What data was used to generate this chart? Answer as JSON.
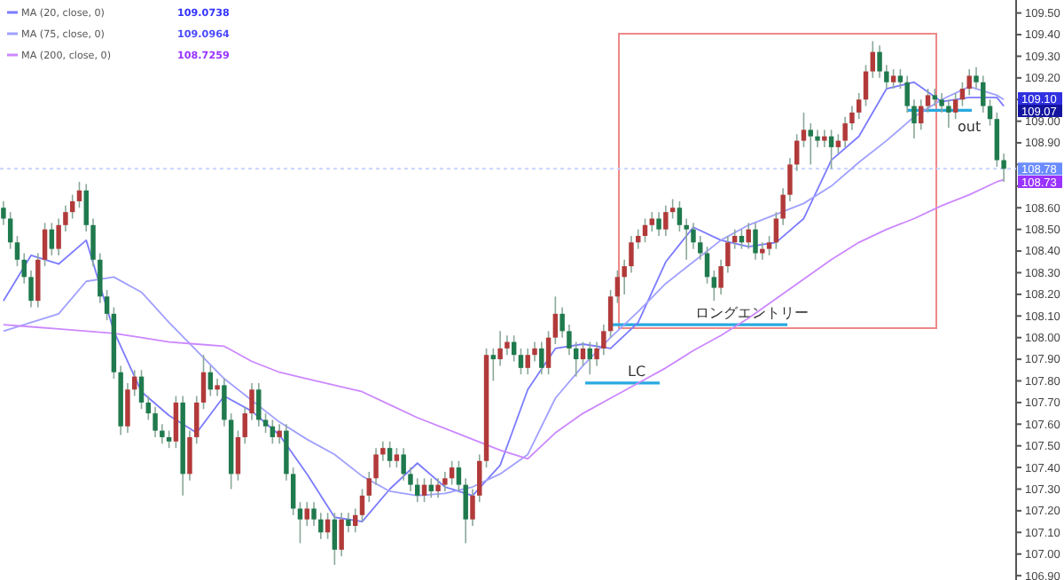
{
  "chart_data": {
    "type": "candlestick",
    "legend": "top left",
    "categories": [
      null,
      null,
      null,
      null,
      null,
      null,
      null,
      null,
      null,
      null,
      null,
      null,
      null,
      null,
      null,
      null,
      null,
      null,
      null,
      null,
      null,
      null,
      null,
      null,
      null,
      null,
      null,
      null,
      null,
      null,
      null,
      null,
      null,
      null,
      null,
      null,
      null,
      null,
      null,
      null,
      null,
      null,
      null,
      null,
      null,
      null,
      null,
      null,
      null,
      null,
      null,
      null,
      null,
      null,
      null,
      null,
      null,
      null,
      null,
      null,
      null,
      null,
      null,
      null,
      null,
      null,
      null,
      null,
      null,
      null,
      null,
      null,
      null,
      null,
      null,
      null,
      null,
      null,
      null,
      null,
      null,
      null,
      null,
      null,
      null,
      null,
      null,
      null,
      null,
      null,
      null,
      null,
      null,
      null,
      null,
      null,
      null,
      null,
      null,
      null,
      null,
      null,
      null,
      null,
      null,
      null,
      null,
      null,
      null,
      null,
      null,
      null,
      null,
      null,
      null,
      null,
      null,
      null,
      null,
      null,
      null,
      null,
      null,
      null,
      null,
      null,
      null,
      null,
      null,
      null,
      null,
      null,
      null,
      null,
      null,
      null,
      null,
      null,
      null,
      null,
      null,
      null,
      null,
      null,
      null,
      null
    ],
    "ohlc": [
      [
        108.6,
        108.63,
        108.52,
        108.55
      ],
      [
        108.55,
        108.58,
        108.41,
        108.44
      ],
      [
        108.44,
        108.47,
        108.33,
        108.36
      ],
      [
        108.36,
        108.39,
        108.25,
        108.28
      ],
      [
        108.28,
        108.31,
        108.14,
        108.17
      ],
      [
        108.17,
        108.39,
        108.14,
        108.36
      ],
      [
        108.36,
        108.53,
        108.33,
        108.5
      ],
      [
        108.5,
        108.53,
        108.38,
        108.41
      ],
      [
        108.41,
        108.55,
        108.38,
        108.52
      ],
      [
        108.52,
        108.61,
        108.49,
        108.58
      ],
      [
        108.58,
        108.66,
        108.55,
        108.63
      ],
      [
        108.63,
        108.72,
        108.6,
        108.68
      ],
      [
        108.68,
        108.71,
        108.49,
        108.52
      ],
      [
        108.52,
        108.55,
        108.33,
        108.36
      ],
      [
        108.36,
        108.39,
        108.16,
        108.19
      ],
      [
        108.19,
        108.22,
        108.08,
        108.11
      ],
      [
        108.11,
        108.14,
        107.81,
        107.84
      ],
      [
        107.84,
        107.87,
        107.55,
        107.59
      ],
      [
        107.59,
        107.79,
        107.56,
        107.76
      ],
      [
        107.76,
        107.85,
        107.73,
        107.82
      ],
      [
        107.82,
        107.85,
        107.67,
        107.7
      ],
      [
        107.7,
        107.73,
        107.62,
        107.65
      ],
      [
        107.65,
        107.68,
        107.54,
        107.57
      ],
      [
        107.57,
        107.6,
        107.51,
        107.54
      ],
      [
        107.54,
        107.57,
        107.49,
        107.52
      ],
      [
        107.52,
        107.73,
        107.49,
        107.7
      ],
      [
        107.7,
        107.73,
        107.27,
        107.37
      ],
      [
        107.37,
        107.57,
        107.34,
        107.54
      ],
      [
        107.54,
        107.73,
        107.51,
        107.7
      ],
      [
        107.7,
        107.92,
        107.67,
        107.84
      ],
      [
        107.84,
        107.87,
        107.73,
        107.76
      ],
      [
        107.76,
        107.81,
        107.73,
        107.78
      ],
      [
        107.78,
        107.81,
        107.59,
        107.62
      ],
      [
        107.62,
        107.65,
        107.3,
        107.37
      ],
      [
        107.37,
        107.57,
        107.34,
        107.54
      ],
      [
        107.54,
        107.68,
        107.51,
        107.65
      ],
      [
        107.65,
        107.79,
        107.62,
        107.76
      ],
      [
        107.76,
        107.79,
        107.59,
        107.62
      ],
      [
        107.62,
        107.65,
        107.56,
        107.59
      ],
      [
        107.59,
        107.62,
        107.51,
        107.54
      ],
      [
        107.54,
        107.6,
        107.51,
        107.57
      ],
      [
        107.57,
        107.6,
        107.34,
        107.37
      ],
      [
        107.37,
        107.4,
        107.18,
        107.21
      ],
      [
        107.21,
        107.24,
        107.05,
        107.16
      ],
      [
        107.16,
        107.24,
        107.13,
        107.21
      ],
      [
        107.21,
        107.24,
        107.13,
        107.16
      ],
      [
        107.16,
        107.19,
        107.07,
        107.1
      ],
      [
        107.1,
        107.19,
        107.07,
        107.16
      ],
      [
        107.16,
        107.19,
        106.95,
        107.02
      ],
      [
        107.02,
        107.19,
        106.99,
        107.16
      ],
      [
        107.16,
        107.19,
        107.1,
        107.13
      ],
      [
        107.13,
        107.21,
        107.1,
        107.18
      ],
      [
        107.18,
        107.3,
        107.15,
        107.27
      ],
      [
        107.27,
        107.38,
        107.24,
        107.35
      ],
      [
        107.35,
        107.49,
        107.32,
        107.46
      ],
      [
        107.46,
        107.52,
        107.43,
        107.49
      ],
      [
        107.49,
        107.52,
        107.4,
        107.43
      ],
      [
        107.43,
        107.49,
        107.4,
        107.46
      ],
      [
        107.46,
        107.49,
        107.34,
        107.37
      ],
      [
        107.37,
        107.4,
        107.29,
        107.32
      ],
      [
        107.32,
        107.35,
        107.24,
        107.27
      ],
      [
        107.27,
        107.35,
        107.24,
        107.32
      ],
      [
        107.32,
        107.35,
        107.26,
        107.29
      ],
      [
        107.29,
        107.35,
        107.26,
        107.32
      ],
      [
        107.32,
        107.38,
        107.29,
        107.35
      ],
      [
        107.35,
        107.43,
        107.32,
        107.4
      ],
      [
        107.4,
        107.43,
        107.29,
        107.32
      ],
      [
        107.32,
        107.35,
        107.05,
        107.16
      ],
      [
        107.16,
        107.3,
        107.13,
        107.27
      ],
      [
        107.27,
        107.46,
        107.24,
        107.43
      ],
      [
        107.43,
        107.95,
        107.4,
        107.92
      ],
      [
        107.92,
        107.95,
        107.8,
        107.9
      ],
      [
        107.9,
        108.03,
        107.87,
        107.95
      ],
      [
        107.95,
        108.01,
        107.92,
        107.98
      ],
      [
        107.98,
        108.01,
        107.89,
        107.92
      ],
      [
        107.92,
        107.95,
        107.83,
        107.86
      ],
      [
        107.86,
        107.95,
        107.83,
        107.92
      ],
      [
        107.92,
        107.98,
        107.89,
        107.95
      ],
      [
        107.95,
        107.98,
        107.83,
        107.86
      ],
      [
        107.86,
        108.03,
        107.83,
        108.0
      ],
      [
        108.0,
        108.19,
        107.97,
        108.11
      ],
      [
        108.11,
        108.14,
        108.0,
        108.03
      ],
      [
        108.03,
        108.06,
        107.92,
        107.95
      ],
      [
        107.95,
        107.98,
        107.82,
        107.9
      ],
      [
        107.9,
        107.98,
        107.87,
        107.95
      ],
      [
        107.95,
        107.98,
        107.83,
        107.9
      ],
      [
        107.9,
        107.98,
        107.87,
        107.95
      ],
      [
        107.95,
        108.06,
        107.92,
        108.03
      ],
      [
        108.03,
        108.22,
        108.0,
        108.19
      ],
      [
        108.19,
        108.31,
        108.16,
        108.28
      ],
      [
        108.28,
        108.36,
        108.2,
        108.33
      ],
      [
        108.33,
        108.47,
        108.3,
        108.44
      ],
      [
        108.44,
        108.5,
        108.41,
        108.47
      ],
      [
        108.47,
        108.55,
        108.44,
        108.52
      ],
      [
        108.52,
        108.58,
        108.49,
        108.55
      ],
      [
        108.55,
        108.58,
        108.47,
        108.5
      ],
      [
        108.5,
        108.61,
        108.47,
        108.58
      ],
      [
        108.58,
        108.64,
        108.55,
        108.6
      ],
      [
        108.6,
        108.63,
        108.49,
        108.52
      ],
      [
        108.52,
        108.55,
        108.36,
        108.5
      ],
      [
        108.5,
        108.53,
        108.41,
        108.44
      ],
      [
        108.44,
        108.47,
        108.36,
        108.39
      ],
      [
        108.39,
        108.42,
        108.25,
        108.28
      ],
      [
        108.28,
        108.31,
        108.17,
        108.23
      ],
      [
        108.23,
        108.36,
        108.2,
        108.33
      ],
      [
        108.33,
        108.47,
        108.3,
        108.44
      ],
      [
        108.44,
        108.5,
        108.41,
        108.47
      ],
      [
        108.47,
        108.5,
        108.41,
        108.44
      ],
      [
        108.44,
        108.53,
        108.41,
        108.5
      ],
      [
        108.5,
        108.53,
        108.36,
        108.39
      ],
      [
        108.39,
        108.44,
        108.36,
        108.41
      ],
      [
        108.41,
        108.47,
        108.38,
        108.44
      ],
      [
        108.44,
        108.58,
        108.41,
        108.55
      ],
      [
        108.55,
        108.69,
        108.52,
        108.66
      ],
      [
        108.66,
        108.83,
        108.63,
        108.8
      ],
      [
        108.8,
        108.94,
        108.77,
        108.91
      ],
      [
        108.91,
        109.04,
        108.88,
        108.96
      ],
      [
        108.96,
        108.99,
        108.8,
        108.93
      ],
      [
        108.93,
        108.96,
        108.88,
        108.91
      ],
      [
        108.91,
        108.96,
        108.88,
        108.93
      ],
      [
        108.93,
        108.96,
        108.78,
        108.88
      ],
      [
        108.88,
        108.94,
        108.85,
        108.91
      ],
      [
        108.91,
        109.02,
        108.88,
        108.99
      ],
      [
        108.99,
        109.07,
        108.96,
        109.04
      ],
      [
        109.04,
        109.13,
        109.01,
        109.1
      ],
      [
        109.1,
        109.26,
        109.07,
        109.23
      ],
      [
        109.23,
        109.37,
        109.2,
        109.32
      ],
      [
        109.32,
        109.35,
        109.2,
        109.23
      ],
      [
        109.23,
        109.26,
        109.15,
        109.18
      ],
      [
        109.18,
        109.24,
        109.15,
        109.21
      ],
      [
        109.21,
        109.24,
        109.15,
        109.18
      ],
      [
        109.18,
        109.21,
        109.04,
        109.07
      ],
      [
        109.07,
        109.1,
        108.92,
        108.99
      ],
      [
        108.99,
        109.1,
        108.96,
        109.07
      ],
      [
        109.07,
        109.15,
        109.04,
        109.12
      ],
      [
        109.12,
        109.15,
        109.07,
        109.1
      ],
      [
        109.1,
        109.13,
        109.04,
        109.07
      ],
      [
        109.07,
        109.1,
        108.97,
        109.04
      ],
      [
        109.04,
        109.13,
        109.01,
        109.1
      ],
      [
        109.1,
        109.18,
        109.07,
        109.15
      ],
      [
        109.15,
        109.24,
        109.12,
        109.21
      ],
      [
        109.21,
        109.25,
        109.15,
        109.18
      ],
      [
        109.18,
        109.21,
        109.04,
        109.07
      ],
      [
        109.07,
        109.1,
        108.98,
        109.01
      ],
      [
        109.01,
        109.04,
        108.79,
        108.82
      ],
      [
        108.82,
        108.85,
        108.72,
        108.78
      ]
    ],
    "series": [
      {
        "name": "MA (20, close, 0)",
        "type": "line",
        "color": "#7b7bff",
        "values": [
          108.17,
          null,
          null,
          null,
          108.38,
          null,
          null,
          null,
          108.34,
          null,
          null,
          null,
          108.45,
          null,
          null,
          null,
          108.03,
          null,
          null,
          null,
          107.75,
          null,
          null,
          null,
          107.64,
          null,
          null,
          null,
          107.56,
          null,
          null,
          null,
          107.73,
          null,
          null,
          null,
          107.66,
          null,
          null,
          null,
          107.55,
          null,
          null,
          null,
          107.37,
          null,
          null,
          null,
          107.17,
          null,
          null,
          null,
          107.15,
          null,
          null,
          null,
          107.3,
          null,
          null,
          null,
          107.42,
          null,
          null,
          null,
          107.31,
          null,
          null,
          null,
          107.27,
          null,
          null,
          null,
          107.41,
          null,
          null,
          null,
          107.76,
          null,
          null,
          null,
          107.95,
          null,
          null,
          null,
          107.97,
          null,
          null,
          null,
          107.95,
          null,
          null,
          null,
          108.07,
          null,
          null,
          null,
          108.35,
          null,
          null,
          null,
          108.51,
          null,
          null,
          null,
          108.45,
          null,
          null,
          null,
          108.42,
          null,
          null,
          null,
          108.44,
          null,
          null,
          null,
          108.55,
          null,
          null,
          null,
          108.82,
          null,
          null,
          null,
          108.93,
          null,
          null,
          null,
          109.15,
          null,
          null,
          null,
          109.18,
          null,
          null,
          null,
          109.09,
          null,
          null,
          null,
          109.11,
          null,
          null,
          null,
          109.11,
          109.07
        ]
      },
      {
        "name": "MA (75, close, 0)",
        "type": "line",
        "color": "#a0a0ff",
        "values": [
          108.03,
          null,
          null,
          null,
          108.07,
          null,
          null,
          null,
          108.11,
          null,
          null,
          null,
          108.26,
          null,
          null,
          null,
          108.28,
          null,
          null,
          null,
          108.21,
          null,
          null,
          null,
          108.07,
          null,
          null,
          null,
          107.94,
          null,
          null,
          null,
          107.81,
          null,
          null,
          null,
          107.71,
          null,
          null,
          null,
          107.61,
          null,
          null,
          null,
          107.53,
          null,
          null,
          null,
          107.46,
          null,
          null,
          null,
          107.36,
          null,
          null,
          null,
          107.29,
          null,
          null,
          null,
          107.27,
          null,
          null,
          null,
          107.28,
          null,
          null,
          null,
          107.31,
          null,
          null,
          null,
          107.37,
          null,
          null,
          null,
          107.46,
          null,
          null,
          null,
          107.72,
          null,
          null,
          null,
          107.87,
          null,
          null,
          null,
          108.0,
          null,
          null,
          null,
          108.12,
          null,
          null,
          null,
          108.25,
          null,
          null,
          null,
          108.35,
          null,
          null,
          null,
          108.45,
          null,
          null,
          null,
          108.52,
          null,
          null,
          null,
          108.57,
          null,
          null,
          null,
          108.62,
          null,
          null,
          null,
          108.7,
          null,
          null,
          null,
          108.81,
          null,
          null,
          null,
          108.91,
          null,
          null,
          null,
          109.02,
          null,
          null,
          null,
          109.1,
          null,
          null,
          null,
          109.16,
          null,
          null,
          null,
          109.12,
          109.1
        ]
      },
      {
        "name": "MA (200, close, 0)",
        "type": "line",
        "color": "#cc88ff",
        "values": [
          108.06,
          null,
          null,
          null,
          108.05,
          null,
          null,
          null,
          108.04,
          null,
          null,
          null,
          108.03,
          null,
          null,
          null,
          108.02,
          null,
          null,
          null,
          108.0,
          null,
          null,
          null,
          107.98,
          null,
          null,
          null,
          107.97,
          null,
          null,
          null,
          107.96,
          null,
          null,
          null,
          107.89,
          null,
          null,
          null,
          107.84,
          null,
          null,
          null,
          107.81,
          null,
          null,
          null,
          107.78,
          null,
          null,
          null,
          107.75,
          null,
          null,
          null,
          107.69,
          null,
          null,
          null,
          107.63,
          null,
          null,
          null,
          107.58,
          null,
          null,
          null,
          107.53,
          null,
          null,
          null,
          107.48,
          null,
          null,
          null,
          107.44,
          null,
          null,
          null,
          107.56,
          null,
          null,
          null,
          107.65,
          null,
          null,
          null,
          107.72,
          null,
          null,
          null,
          107.79,
          null,
          null,
          null,
          107.86,
          null,
          null,
          null,
          107.94,
          null,
          null,
          null,
          108.01,
          null,
          null,
          null,
          108.09,
          null,
          null,
          null,
          108.18,
          null,
          null,
          null,
          108.27,
          null,
          null,
          null,
          108.36,
          null,
          null,
          null,
          108.44,
          null,
          null,
          null,
          108.5,
          null,
          null,
          null,
          108.55,
          null,
          null,
          null,
          108.61,
          null,
          null,
          null,
          108.66,
          null,
          null,
          null,
          108.72,
          108.73
        ]
      }
    ],
    "ylim": [
      106.88,
      109.56
    ],
    "yticks": [
      {
        "value": 106.9,
        "label": "106.90"
      },
      {
        "value": 107.0,
        "label": "107.00"
      },
      {
        "value": 107.1,
        "label": "107.10"
      },
      {
        "value": 107.2,
        "label": "107.20"
      },
      {
        "value": 107.3,
        "label": "107.30"
      },
      {
        "value": 107.4,
        "label": "107.40"
      },
      {
        "value": 107.5,
        "label": "107.50"
      },
      {
        "value": 107.6,
        "label": "107.60"
      },
      {
        "value": 107.7,
        "label": "107.70"
      },
      {
        "value": 107.8,
        "label": "107.80"
      },
      {
        "value": 107.9,
        "label": "107.90"
      },
      {
        "value": 108.0,
        "label": "108.00"
      },
      {
        "value": 108.1,
        "label": "108.10"
      },
      {
        "value": 108.2,
        "label": "108.20"
      },
      {
        "value": 108.3,
        "label": "108.30"
      },
      {
        "value": 108.4,
        "label": "108.40"
      },
      {
        "value": 108.5,
        "label": "108.50"
      },
      {
        "value": 108.6,
        "label": "108.60"
      },
      {
        "value": 108.7,
        "label": null
      },
      {
        "value": 108.8,
        "label": null
      },
      {
        "value": 108.9,
        "label": "108.90"
      },
      {
        "value": 109.0,
        "label": "109.00"
      },
      {
        "value": 109.1,
        "label": null
      },
      {
        "value": 109.2,
        "label": "109.20"
      },
      {
        "value": 109.3,
        "label": "109.30"
      },
      {
        "value": 109.4,
        "label": "109.40"
      },
      {
        "value": 109.5,
        "label": "109.50"
      }
    ],
    "tick_labels": "y",
    "ref_lines": [
      {
        "axis": "y",
        "value": 108.78,
        "label": "108.78",
        "color": "#c8d4ff",
        "line_style": "dotted"
      },
      {
        "axis": "y",
        "value": 108.06,
        "label": "ロングエントリー",
        "color": "#29a9e0"
      },
      {
        "axis": "y",
        "value": 107.79,
        "label": "LC",
        "color": "#29a9e0"
      },
      {
        "axis": "y",
        "value": 109.05,
        "label": "out",
        "color": "#29a9e0"
      }
    ],
    "annotations": [
      "109.0738",
      "109.0964",
      "108.7259",
      "109.10",
      "109.07",
      "108.73"
    ]
  }
}
